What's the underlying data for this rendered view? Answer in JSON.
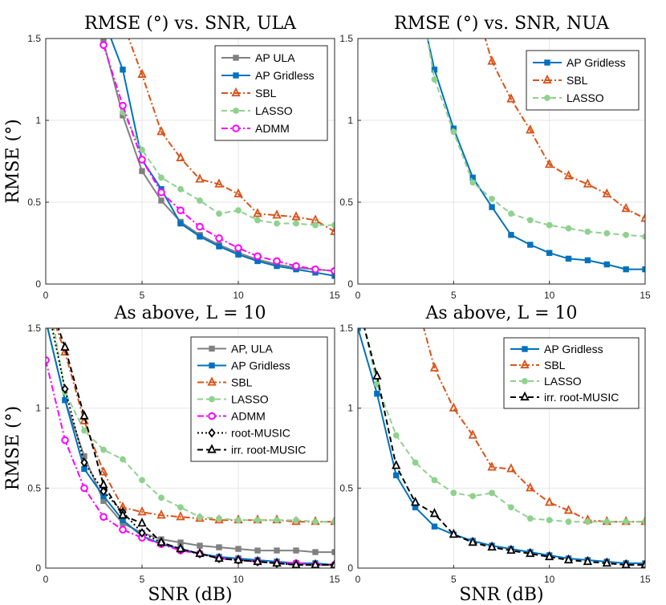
{
  "chart_data": [
    {
      "type": "line",
      "title": "RMSE (°) vs. SNR, ULA",
      "xlabel": "",
      "ylabel": "RMSE (°)",
      "xlim": [
        0,
        15
      ],
      "ylim": [
        0,
        1.5
      ],
      "xticks": [
        "0",
        "5",
        "10",
        "15"
      ],
      "yticks": [
        "0",
        "0.5",
        "1",
        "1.5"
      ],
      "legend_position": "top-right",
      "series": [
        {
          "name": "AP ULA",
          "color": "#808080",
          "style": "solid",
          "marker": "square",
          "x": [
            3,
            4,
            5,
            6,
            7,
            8,
            9,
            10,
            11,
            12,
            13,
            14,
            15
          ],
          "y": [
            1.48,
            1.03,
            0.69,
            0.51,
            0.38,
            0.3,
            0.24,
            0.19,
            0.15,
            0.12,
            0.1,
            0.09,
            0.08
          ]
        },
        {
          "name": "AP Gridless",
          "color": "#0072BD",
          "style": "solid",
          "marker": "square",
          "x": [
            3,
            4,
            5,
            6,
            7,
            8,
            9,
            10,
            11,
            12,
            13,
            14,
            15
          ],
          "y": [
            1.62,
            1.31,
            0.76,
            0.58,
            0.37,
            0.29,
            0.23,
            0.18,
            0.14,
            0.11,
            0.09,
            0.07,
            0.05
          ]
        },
        {
          "name": "SBL",
          "color": "#D95319",
          "style": "dashdot",
          "marker": "triangle",
          "x": [
            4,
            5,
            6,
            7,
            8,
            9,
            10,
            11,
            12,
            13,
            14,
            15
          ],
          "y": [
            1.6,
            1.28,
            0.93,
            0.77,
            0.64,
            0.61,
            0.55,
            0.43,
            0.42,
            0.41,
            0.39,
            0.32
          ]
        },
        {
          "name": "LASSO",
          "color": "#8FD18F",
          "style": "dashed",
          "marker": "circle",
          "x": [
            4,
            5,
            6,
            7,
            8,
            9,
            10,
            11,
            12,
            13,
            14,
            15
          ],
          "y": [
            1.05,
            0.82,
            0.65,
            0.58,
            0.51,
            0.43,
            0.45,
            0.39,
            0.37,
            0.37,
            0.36,
            0.36
          ]
        },
        {
          "name": "ADMM",
          "color": "#FF00FF",
          "style": "dashdot",
          "marker": "circle-open",
          "x": [
            3,
            4,
            5,
            6,
            7,
            8,
            9,
            10,
            11,
            12,
            13,
            14,
            15
          ],
          "y": [
            1.46,
            1.09,
            0.76,
            0.56,
            0.45,
            0.35,
            0.28,
            0.22,
            0.17,
            0.14,
            0.11,
            0.09,
            0.08
          ]
        }
      ]
    },
    {
      "type": "line",
      "title": "RMSE (°) vs. SNR, NUA",
      "xlabel": "",
      "ylabel": "",
      "xlim": [
        0,
        15
      ],
      "ylim": [
        0,
        1.5
      ],
      "xticks": [
        "0",
        "5",
        "10",
        "15"
      ],
      "yticks": [
        "0",
        "0.5",
        "1",
        "1.5"
      ],
      "legend_position": "top-right",
      "series": [
        {
          "name": "AP Gridless",
          "color": "#0072BD",
          "style": "solid",
          "marker": "square",
          "x": [
            3.6,
            4,
            5,
            6,
            7,
            8,
            9,
            10,
            11,
            12,
            13,
            14,
            15
          ],
          "y": [
            1.52,
            1.31,
            0.95,
            0.65,
            0.47,
            0.3,
            0.24,
            0.19,
            0.155,
            0.145,
            0.12,
            0.09,
            0.09
          ]
        },
        {
          "name": "SBL",
          "color": "#D95319",
          "style": "dashdot",
          "marker": "triangle",
          "x": [
            6.6,
            7,
            8,
            9,
            10,
            11,
            12,
            13,
            14,
            15
          ],
          "y": [
            1.52,
            1.36,
            1.13,
            0.94,
            0.73,
            0.66,
            0.61,
            0.55,
            0.46,
            0.4
          ]
        },
        {
          "name": "LASSO",
          "color": "#8FD18F",
          "style": "dashed",
          "marker": "circle",
          "x": [
            3.6,
            4,
            5,
            6,
            7,
            8,
            9,
            10,
            11,
            12,
            13,
            14,
            15
          ],
          "y": [
            1.52,
            1.25,
            0.93,
            0.62,
            0.52,
            0.43,
            0.39,
            0.36,
            0.34,
            0.32,
            0.31,
            0.3,
            0.29
          ]
        }
      ]
    },
    {
      "type": "line",
      "title": "As above, L = 10",
      "xlabel": "SNR (dB)",
      "ylabel": "RMSE (°)",
      "xlim": [
        0,
        15
      ],
      "ylim": [
        0,
        1.5
      ],
      "xticks": [
        "0",
        "5",
        "10",
        "15"
      ],
      "yticks": [
        "0",
        "0.5",
        "1",
        "1.5"
      ],
      "legend_position": "top-right",
      "series": [
        {
          "name": "AP, ULA",
          "color": "#808080",
          "style": "solid",
          "marker": "square",
          "x": [
            0,
            1,
            2,
            3,
            4,
            5,
            6,
            7,
            8,
            9,
            10,
            11,
            12,
            13,
            14,
            15
          ],
          "y": [
            1.55,
            1.05,
            0.7,
            0.42,
            0.28,
            0.22,
            0.18,
            0.16,
            0.14,
            0.13,
            0.12,
            0.11,
            0.11,
            0.11,
            0.1,
            0.1
          ]
        },
        {
          "name": "AP Gridless",
          "color": "#0072BD",
          "style": "solid",
          "marker": "square",
          "x": [
            0,
            1,
            2,
            3,
            4,
            5,
            6,
            7,
            8,
            9,
            10,
            11,
            12,
            13,
            14,
            15
          ],
          "y": [
            1.55,
            1.05,
            0.62,
            0.45,
            0.3,
            0.2,
            0.15,
            0.12,
            0.09,
            0.07,
            0.06,
            0.05,
            0.04,
            0.03,
            0.03,
            0.02
          ]
        },
        {
          "name": "SBL",
          "color": "#D95319",
          "style": "dashdot",
          "marker": "triangle",
          "x": [
            0.5,
            1,
            2,
            3,
            4,
            5,
            6,
            7,
            8,
            9,
            10,
            11,
            12,
            13,
            14,
            15
          ],
          "y": [
            1.52,
            1.35,
            0.92,
            0.6,
            0.38,
            0.35,
            0.33,
            0.32,
            0.31,
            0.3,
            0.3,
            0.3,
            0.3,
            0.29,
            0.29,
            0.29
          ]
        },
        {
          "name": "LASSO",
          "color": "#8FD18F",
          "style": "dashed",
          "marker": "circle",
          "x": [
            0.4,
            1,
            2,
            3,
            4,
            5,
            6,
            7,
            8,
            9,
            10,
            11,
            12,
            13,
            14,
            15
          ],
          "y": [
            1.52,
            1.1,
            0.86,
            0.74,
            0.68,
            0.55,
            0.44,
            0.38,
            0.32,
            0.31,
            0.3,
            0.3,
            0.3,
            0.3,
            0.29,
            0.29
          ]
        },
        {
          "name": "ADMM",
          "color": "#FF00FF",
          "style": "dashdot",
          "marker": "circle-open",
          "x": [
            0,
            1,
            2,
            3,
            4,
            5,
            6,
            7,
            8,
            9,
            10,
            11,
            12,
            13,
            14,
            15
          ],
          "y": [
            1.3,
            0.8,
            0.5,
            0.32,
            0.24,
            0.19,
            0.15,
            0.11,
            0.09,
            0.06,
            0.05,
            0.04,
            0.03,
            0.03,
            0.02,
            0.02
          ]
        },
        {
          "name": "root-MUSIC",
          "color": "#000000",
          "style": "dotted",
          "marker": "diamond",
          "x": [
            0.3,
            1,
            2,
            3,
            4,
            5,
            6,
            7,
            8,
            9,
            10,
            11,
            12,
            13,
            14,
            15
          ],
          "y": [
            1.52,
            1.12,
            0.66,
            0.48,
            0.35,
            0.22,
            0.16,
            0.12,
            0.09,
            0.06,
            0.05,
            0.04,
            0.03,
            0.02,
            0.02,
            0.02
          ]
        },
        {
          "name": "irr. root-MUSIC",
          "color": "#000000",
          "style": "dashed",
          "marker": "triangle-open",
          "x": [
            0.6,
            1,
            2,
            3,
            4,
            5,
            6,
            7,
            8,
            9,
            10,
            11,
            12,
            13,
            14,
            15
          ],
          "y": [
            1.52,
            1.38,
            0.95,
            0.52,
            0.33,
            0.28,
            0.16,
            0.12,
            0.09,
            0.06,
            0.05,
            0.04,
            0.03,
            0.02,
            0.02,
            0.02
          ]
        }
      ]
    },
    {
      "type": "line",
      "title": "As above, L = 10",
      "xlabel": "SNR (dB)",
      "ylabel": "",
      "xlim": [
        0,
        15
      ],
      "ylim": [
        0,
        1.5
      ],
      "xticks": [
        "0",
        "5",
        "10",
        "15"
      ],
      "yticks": [
        "0",
        "0.5",
        "1",
        "1.5"
      ],
      "legend_position": "top-right",
      "series": [
        {
          "name": "AP Gridless",
          "color": "#0072BD",
          "style": "solid",
          "marker": "square",
          "x": [
            0,
            1,
            2,
            3,
            4,
            5,
            6,
            7,
            8,
            9,
            10,
            11,
            12,
            13,
            14,
            15
          ],
          "y": [
            1.5,
            1.09,
            0.58,
            0.38,
            0.26,
            0.21,
            0.17,
            0.14,
            0.12,
            0.1,
            0.08,
            0.06,
            0.05,
            0.04,
            0.03,
            0.03
          ]
        },
        {
          "name": "SBL",
          "color": "#D95319",
          "style": "dashdot",
          "marker": "triangle",
          "x": [
            3.4,
            4,
            5,
            6,
            7,
            8,
            9,
            10,
            11,
            12,
            13,
            14,
            15
          ],
          "y": [
            1.52,
            1.25,
            1.0,
            0.83,
            0.63,
            0.62,
            0.5,
            0.41,
            0.36,
            0.3,
            0.29,
            0.29,
            0.29
          ]
        },
        {
          "name": "LASSO",
          "color": "#8FD18F",
          "style": "dashed",
          "marker": "circle",
          "x": [
            0.3,
            1,
            2,
            3,
            4,
            5,
            6,
            7,
            8,
            9,
            10,
            11,
            12,
            13,
            14,
            15
          ],
          "y": [
            1.52,
            1.15,
            0.83,
            0.66,
            0.55,
            0.47,
            0.45,
            0.47,
            0.38,
            0.31,
            0.3,
            0.29,
            0.29,
            0.29,
            0.29,
            0.29
          ]
        },
        {
          "name": "irr. root-MUSIC",
          "color": "#000000",
          "style": "dashed",
          "marker": "triangle-open",
          "x": [
            0.3,
            1,
            2,
            3,
            4,
            5,
            6,
            7,
            8,
            9,
            10,
            11,
            12,
            13,
            14,
            15
          ],
          "y": [
            1.52,
            1.2,
            0.64,
            0.41,
            0.34,
            0.21,
            0.16,
            0.13,
            0.11,
            0.09,
            0.07,
            0.05,
            0.04,
            0.03,
            0.02,
            0.02
          ]
        }
      ]
    }
  ]
}
